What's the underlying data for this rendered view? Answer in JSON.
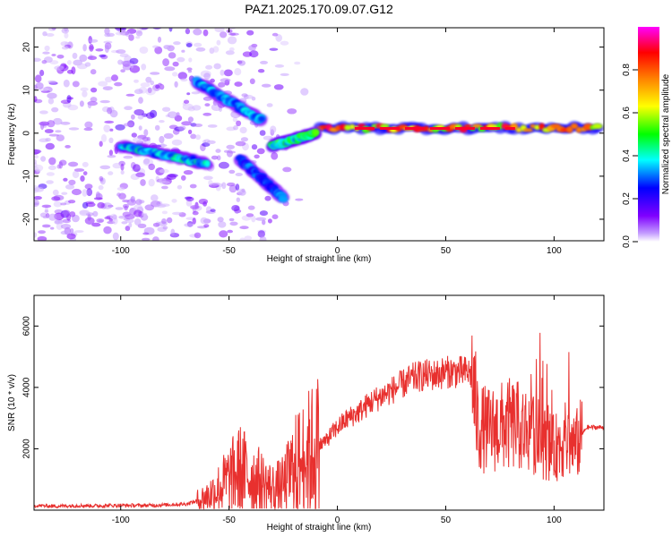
{
  "title": "PAZ1.2025.170.09.07.G12",
  "colors": {
    "snr_line": "#e8302e",
    "spectro_base": "#7f2bff",
    "frame": "#000000"
  },
  "chart_data": [
    {
      "type": "heatmap",
      "title": "PAZ1.2025.170.09.07.G12",
      "xlabel": "Height of straight line (km)",
      "ylabel": "Frequency (Hz)",
      "xlim": [
        -140,
        123
      ],
      "ylim": [
        -25,
        24.5
      ],
      "x_ticks": [
        -100,
        -50,
        0,
        50,
        100
      ],
      "y_ticks": [
        -20,
        -10,
        0,
        10,
        20
      ],
      "grid": false,
      "colorbar": {
        "label": "Normalized spectral amplitude",
        "range": [
          0,
          1
        ],
        "ticks": [
          0.0,
          0.2,
          0.4,
          0.6,
          0.8
        ],
        "tick_labels": [
          "0.0",
          "0.2",
          "0.4",
          "0.6",
          "0.8"
        ],
        "stops": [
          "#ffffff",
          "#7f00ff",
          "#0000ff",
          "#00ffff",
          "#00ff00",
          "#ffff00",
          "#ff8000",
          "#ff0000",
          "#ff00ff"
        ]
      },
      "features": [
        {
          "x": [
            -8,
            120
          ],
          "y": [
            1.2,
            1.2
          ],
          "amplitude": 0.95
        },
        {
          "x": [
            -100,
            -60
          ],
          "y": [
            -3,
            -7
          ],
          "amplitude": 0.45
        },
        {
          "x": [
            -65,
            -35
          ],
          "y": [
            12,
            3
          ],
          "amplitude": 0.4
        },
        {
          "x": [
            -45,
            -25
          ],
          "y": [
            -6,
            -15
          ],
          "amplitude": 0.35
        },
        {
          "x": [
            -30,
            -10
          ],
          "y": [
            -3,
            0
          ],
          "amplitude": 0.55
        }
      ]
    },
    {
      "type": "line",
      "xlabel": "Height of straight line (km)",
      "ylabel": "SNR (10 * v/v)",
      "xlim": [
        -140,
        123
      ],
      "ylim": [
        0,
        7000
      ],
      "x_ticks": [
        -100,
        -50,
        0,
        50,
        100
      ],
      "y_ticks": [
        2000,
        4000,
        6000
      ],
      "grid": false,
      "series": [
        {
          "x": [
            -140,
            -130,
            -120,
            -110,
            -100,
            -90,
            -80,
            -70,
            -65,
            -60,
            -55,
            -50,
            -45,
            -40,
            -35,
            -30,
            -25,
            -20,
            -15,
            -10,
            -5,
            0,
            5,
            10,
            15,
            20,
            25,
            30,
            35,
            40,
            45,
            50,
            55,
            60,
            62,
            65,
            70,
            75,
            80,
            85,
            90,
            95,
            100,
            105,
            110,
            115,
            123
          ],
          "y": [
            150,
            130,
            150,
            140,
            160,
            150,
            170,
            200,
            300,
            450,
            700,
            1000,
            1300,
            1100,
            900,
            700,
            800,
            1400,
            1700,
            2000,
            2300,
            2700,
            3000,
            3200,
            3500,
            3700,
            3900,
            4100,
            4300,
            4400,
            4400,
            4500,
            4500,
            4500,
            4400,
            2700,
            2600,
            2700,
            2800,
            2700,
            2600,
            2200,
            2000,
            2300,
            2100,
            2700,
            2700
          ]
        }
      ]
    }
  ]
}
